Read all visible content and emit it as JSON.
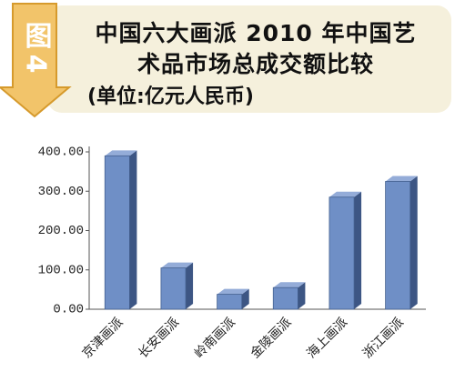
{
  "chart_data": {
    "type": "bar",
    "badge": "图4",
    "title": "中国六大画派 2010 年中国艺术品市场总成交额比较",
    "subtitle": "(单位:亿元人民币)",
    "categories": [
      "京津画派",
      "长安画派",
      "岭南画派",
      "金陵画派",
      "海上画派",
      "浙江画派"
    ],
    "values": [
      390,
      105,
      38,
      55,
      285,
      325
    ],
    "color": "#6f8fc6",
    "ylim": [
      0,
      400
    ],
    "yticks": [
      {
        "value": 0,
        "label": "0.00"
      },
      {
        "value": 100,
        "label": "100.00"
      },
      {
        "value": 200,
        "label": "200.00"
      },
      {
        "value": 300,
        "label": "300.00"
      },
      {
        "value": 400,
        "label": "400.00"
      }
    ],
    "grid": false
  }
}
